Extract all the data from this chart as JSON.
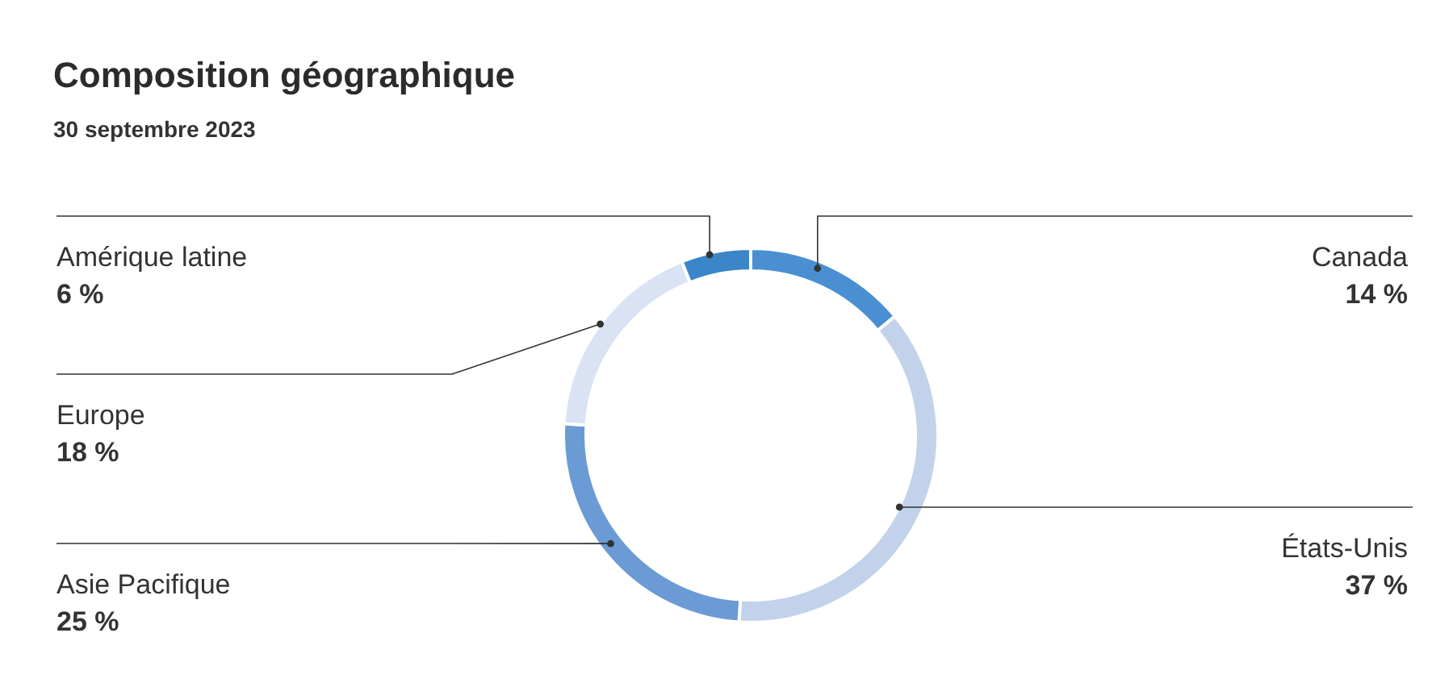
{
  "chart_data": {
    "type": "donut",
    "title": "Composition géographique",
    "subtitle": "30 septembre 2023",
    "categories": [
      "Canada",
      "États-Unis",
      "Asie Pacifique",
      "Europe",
      "Amérique latine"
    ],
    "values": [
      14,
      37,
      25,
      18,
      6
    ],
    "value_labels": [
      "14 %",
      "37 %",
      "25 %",
      "18 %",
      "6 %"
    ],
    "colors": [
      "#4a8fd2",
      "#c2d2ea",
      "#6b9bd4",
      "#d9e3f3",
      "#3a86c8"
    ]
  }
}
